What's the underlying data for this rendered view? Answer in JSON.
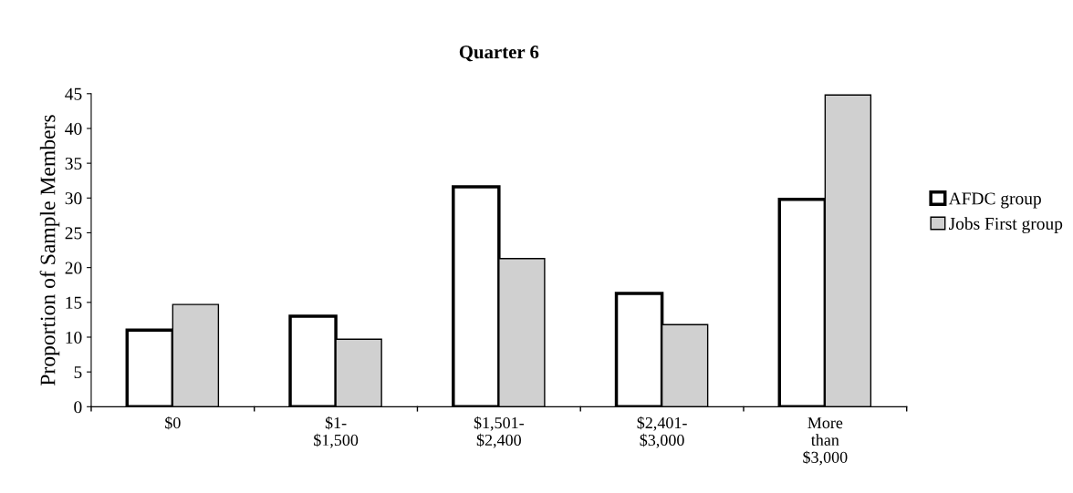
{
  "chart_data": {
    "type": "bar",
    "title": "Quarter 6",
    "ylabel": "Proportion of Sample Members",
    "categories": [
      "$0",
      "$1-\n$1,500",
      "$1,501-\n$2,400",
      "$2,401-\n$3,000",
      "More\nthan\n$3,000"
    ],
    "series": [
      {
        "name": "AFDC group",
        "color": "#ffffff",
        "values": [
          11,
          13,
          31.6,
          16.3,
          29.8
        ]
      },
      {
        "name": "Jobs First group",
        "color": "#d0d0d0",
        "values": [
          14.7,
          9.7,
          21.3,
          11.8,
          44.8
        ]
      }
    ],
    "ylim": [
      0,
      45
    ],
    "yticks": [
      0,
      5,
      10,
      15,
      20,
      25,
      30,
      35,
      40,
      45
    ],
    "grid": false,
    "legend": "right"
  }
}
